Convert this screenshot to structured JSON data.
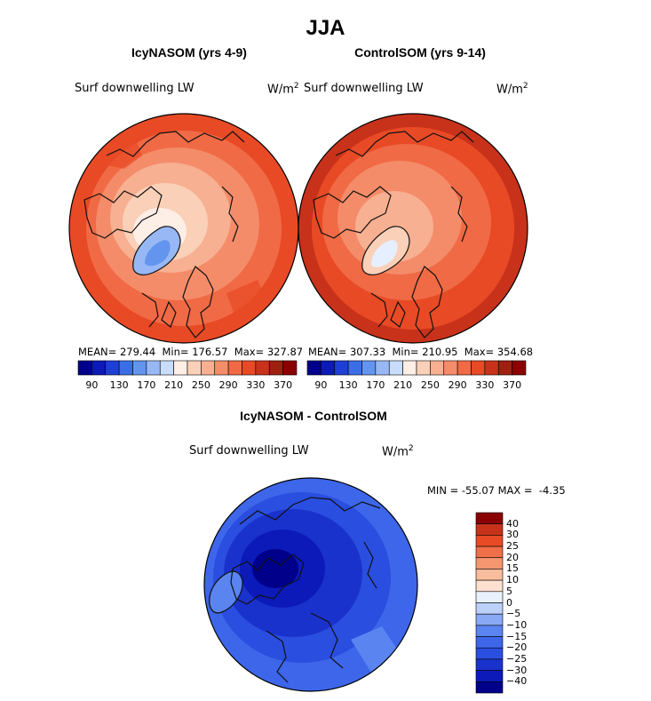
{
  "figure": {
    "title": "JJA",
    "colors": {
      "coast": "#111111",
      "background": "#ffffff"
    }
  },
  "chart_data": [
    {
      "type": "heatmap",
      "projection": "polar-stereographic",
      "title": "IcyNASOM (yrs 4-9)",
      "variable": "Surf downwelling LW",
      "units": "W/m",
      "units_exp": "2",
      "stats": {
        "mean": "279.44",
        "min": "176.57",
        "max": "327.87"
      },
      "colorbar": {
        "levels": [
          90,
          110,
          130,
          150,
          170,
          190,
          210,
          230,
          250,
          270,
          290,
          310,
          330,
          350,
          370
        ],
        "tick_labels": [
          "90",
          "130",
          "170",
          "210",
          "250",
          "290",
          "330",
          "370"
        ],
        "colors": [
          "#00008b",
          "#0b1ab8",
          "#1e3fd6",
          "#3b6ee6",
          "#6395ef",
          "#97b8f5",
          "#c8dcfb",
          "#fdeee6",
          "#fad0b8",
          "#f7b091",
          "#f48c69",
          "#f06a45",
          "#e84a25",
          "#c8321a",
          "#a0200f",
          "#8b0000"
        ]
      }
    },
    {
      "type": "heatmap",
      "projection": "polar-stereographic",
      "title": "ControlSOM (yrs 9-14)",
      "variable": "Surf downwelling LW",
      "units": "W/m",
      "units_exp": "2",
      "stats": {
        "mean": "307.33",
        "min": "210.95",
        "max": "354.68"
      },
      "colorbar": {
        "levels": [
          90,
          110,
          130,
          150,
          170,
          190,
          210,
          230,
          250,
          270,
          290,
          310,
          330,
          350,
          370
        ],
        "tick_labels": [
          "90",
          "130",
          "170",
          "210",
          "250",
          "290",
          "330",
          "370"
        ],
        "colors": [
          "#00008b",
          "#0b1ab8",
          "#1e3fd6",
          "#3b6ee6",
          "#6395ef",
          "#97b8f5",
          "#c8dcfb",
          "#fdeee6",
          "#fad0b8",
          "#f7b091",
          "#f48c69",
          "#f06a45",
          "#e84a25",
          "#c8321a",
          "#a0200f",
          "#8b0000"
        ]
      }
    },
    {
      "type": "heatmap",
      "projection": "polar-stereographic",
      "title": "IcyNASOM - ControlSOM",
      "variable": "Surf downwelling LW",
      "units": "W/m",
      "units_exp": "2",
      "stats": {
        "min": "-55.07",
        "max": "-4.35"
      },
      "colorbar": {
        "levels": [
          -40,
          -30,
          -25,
          -20,
          -15,
          -10,
          -5,
          0,
          5,
          10,
          15,
          20,
          25,
          30,
          40
        ],
        "tick_labels": [
          "-40",
          "-30",
          "-25",
          "-20",
          "-15",
          "-10",
          "-5",
          "0",
          "5",
          "10",
          "15",
          "20",
          "25",
          "30",
          "40"
        ],
        "colors": [
          "#00008b",
          "#0b1ab8",
          "#1a32cc",
          "#2a4ee0",
          "#3d66ea",
          "#5a84f0",
          "#8aa9f5",
          "#bcd0fa",
          "#e9f1fd",
          "#fde0cf",
          "#f9bc9c",
          "#f59670",
          "#f06e48",
          "#e84a25",
          "#c8321a",
          "#8b0000"
        ]
      }
    }
  ]
}
